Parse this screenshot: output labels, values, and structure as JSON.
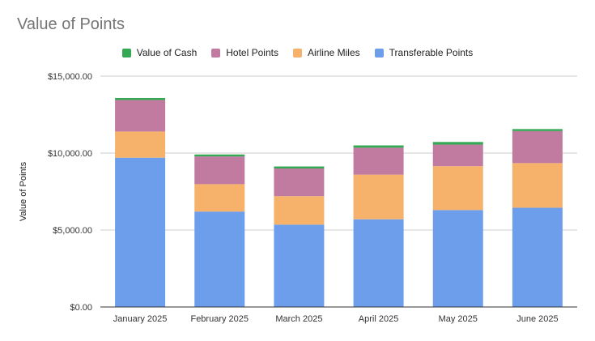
{
  "chart_data": {
    "type": "bar",
    "stacked": true,
    "title": "Value of Points",
    "ylabel": "Value of Points",
    "xlabel": "",
    "ylim": [
      0,
      15000
    ],
    "yticks": [
      0,
      5000,
      10000,
      15000
    ],
    "ytick_labels": [
      "$0.00",
      "$5,000.00",
      "$10,000.00",
      "$15,000.00"
    ],
    "grid": true,
    "legend_position": "top",
    "categories": [
      "January 2025",
      "February 2025",
      "March 2025",
      "April 2025",
      "May 2025",
      "June 2025"
    ],
    "series": [
      {
        "name": "Transferable Points",
        "color": "#6d9eeb",
        "values": [
          9700,
          6200,
          5350,
          5700,
          6300,
          6450
        ]
      },
      {
        "name": "Airline Miles",
        "color": "#f6b26b",
        "values": [
          1700,
          1780,
          1850,
          2900,
          2850,
          2900
        ]
      },
      {
        "name": "Hotel Points",
        "color": "#c27ba0",
        "values": [
          2050,
          1800,
          1800,
          1750,
          1400,
          2080
        ]
      },
      {
        "name": "Value of Cash",
        "color": "#34a853",
        "values": [
          130,
          130,
          130,
          150,
          170,
          130
        ]
      }
    ],
    "legend_order": [
      "Value of Cash",
      "Hotel Points",
      "Airline Miles",
      "Transferable Points"
    ]
  }
}
